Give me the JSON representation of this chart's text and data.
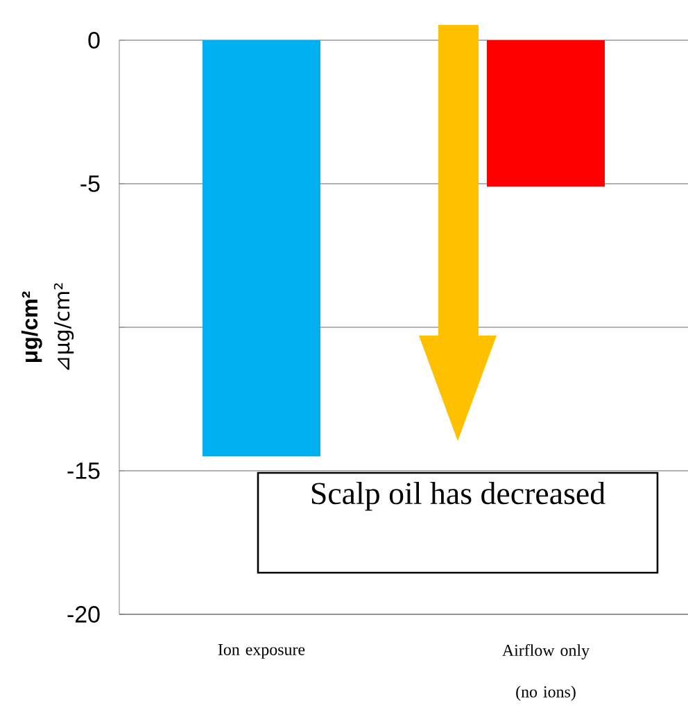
{
  "chart_data": {
    "type": "bar",
    "ylabel": "μg/cm²",
    "categories": [
      "Ion exposure",
      "Airflow only (no ions)"
    ],
    "values": [
      -14.5,
      -5.1
    ],
    "colors": [
      "#00b0f0",
      "#ff0000"
    ],
    "ylim": [
      -20,
      0
    ],
    "yticks": [
      -20,
      -15,
      {
        "value": -10,
        "label": null
      },
      -5,
      0
    ],
    "grid": "y",
    "annotations": [
      "Scalp oil has decreased",
      "⊿μg/cm²"
    ]
  }
}
